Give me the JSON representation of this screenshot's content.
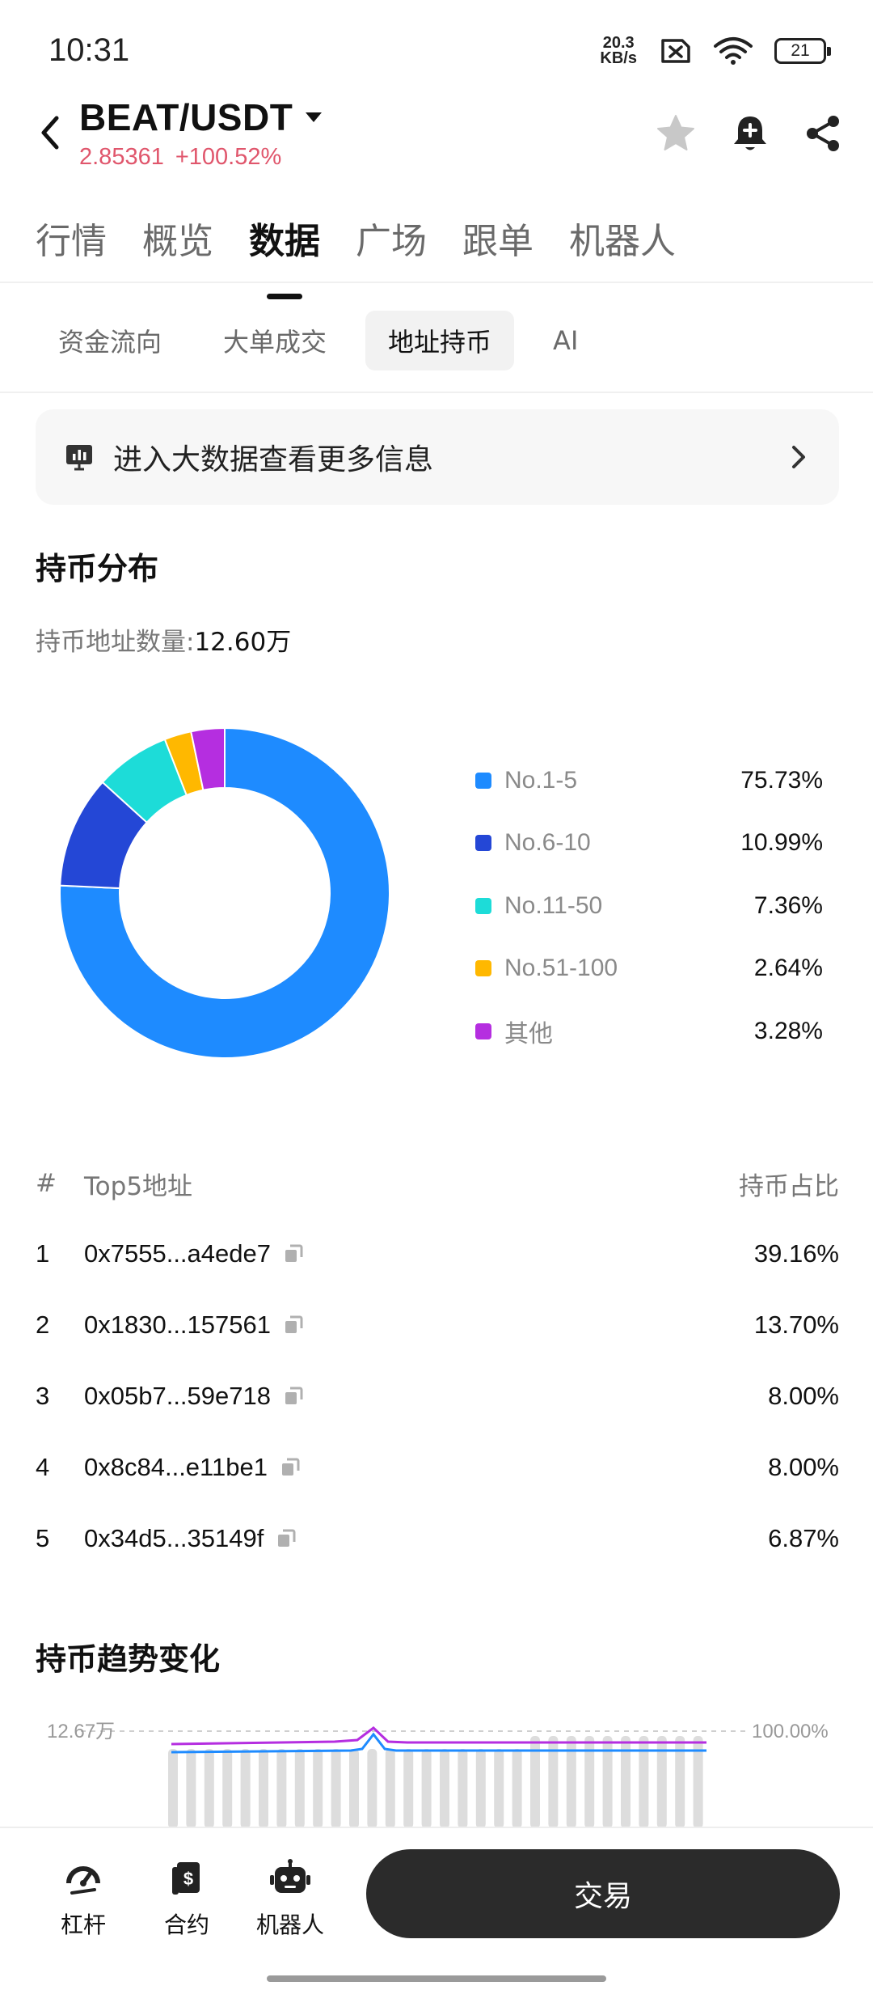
{
  "status_bar": {
    "time": "10:31",
    "net_speed_value": "20.3",
    "net_speed_unit": "KB/s",
    "battery": "21"
  },
  "header": {
    "pair": "BEAT/USDT",
    "price": "2.85361",
    "change": "+100.52%",
    "price_color": "#e0566c"
  },
  "main_tabs": [
    {
      "label": "行情"
    },
    {
      "label": "概览"
    },
    {
      "label": "数据"
    },
    {
      "label": "广场"
    },
    {
      "label": "跟单"
    },
    {
      "label": "机器人"
    }
  ],
  "main_tabs_active": "数据",
  "sub_tabs": [
    {
      "label": "资金流向"
    },
    {
      "label": "大单成交"
    },
    {
      "label": "地址持币"
    },
    {
      "label": "AI"
    }
  ],
  "sub_tabs_active": "地址持币",
  "banner": {
    "text": "进入大数据查看更多信息"
  },
  "distribution": {
    "title": "持币分布",
    "count_label": "持币地址数量:",
    "count_value": "12.60万"
  },
  "chart_data": [
    {
      "type": "pie",
      "variant": "donut",
      "categories": [
        "No.1-5",
        "No.6-10",
        "No.11-50",
        "No.51-100",
        "其他"
      ],
      "values": [
        75.73,
        10.99,
        7.36,
        2.64,
        3.28
      ],
      "value_labels": [
        "75.73%",
        "10.99%",
        "7.36%",
        "2.64%",
        "3.28%"
      ],
      "colors": [
        "#1e8bff",
        "#2447d6",
        "#1ddcd8",
        "#ffb800",
        "#b52ee0"
      ],
      "legend": "right"
    },
    {
      "type": "line",
      "title": "持币趋势变化",
      "left_axis_top_label": "12.67万",
      "right_axis_top_label": "100.00%",
      "bar_color": "#dddddd",
      "series_colors": [
        "#b52ee0",
        "#1e8bff"
      ]
    }
  ],
  "top5": {
    "col_rank": "#",
    "col_address": "Top5地址",
    "col_share": "持币占比",
    "rows": [
      {
        "rank": "1",
        "address": "0x7555...a4ede7",
        "share": "39.16%"
      },
      {
        "rank": "2",
        "address": "0x1830...157561",
        "share": "13.70%"
      },
      {
        "rank": "3",
        "address": "0x05b7...59e718",
        "share": "8.00%"
      },
      {
        "rank": "4",
        "address": "0x8c84...e11be1",
        "share": "8.00%"
      },
      {
        "rank": "5",
        "address": "0x34d5...35149f",
        "share": "6.87%"
      }
    ]
  },
  "trend": {
    "title": "持币趋势变化"
  },
  "bottom_nav": {
    "items": [
      {
        "label": "杠杆",
        "icon": "leverage-icon"
      },
      {
        "label": "合约",
        "icon": "contract-icon"
      },
      {
        "label": "机器人",
        "icon": "robot-icon"
      }
    ],
    "trade_label": "交易"
  }
}
